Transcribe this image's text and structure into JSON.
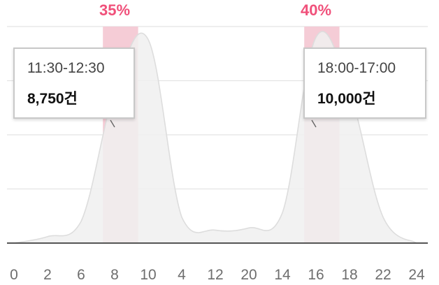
{
  "chart_data": {
    "type": "area",
    "x_tick_labels": [
      "0",
      "2",
      "6",
      "8",
      "10",
      "4",
      "12",
      "20",
      "14",
      "16",
      "18",
      "22",
      "24"
    ],
    "ylim": [
      0,
      100
    ],
    "grid": true,
    "series": [
      {
        "values": [
          0,
          3,
          10,
          70,
          94,
          12,
          6,
          7,
          14,
          95,
          70,
          12,
          0
        ]
      }
    ],
    "highlights": [
      {
        "from_index": 2.65,
        "to_index": 3.7,
        "label": "35%",
        "peak_index": 3.0
      },
      {
        "from_index": 8.65,
        "to_index": 9.7,
        "label": "40%",
        "peak_index": 9.0
      }
    ],
    "tooltips": [
      {
        "time": "11:30-12:30",
        "count": "8,750건",
        "anchor_index": 3.0
      },
      {
        "time": "18:00-17:00",
        "count": "10,000건",
        "anchor_index": 9.0
      }
    ],
    "colors": {
      "area_fill": "#f0f0f0",
      "area_stroke": "#dddddd",
      "highlight": "#f5ccd6",
      "peak_label": "#f0507a",
      "baseline": "#555555",
      "grid": "#e4e4e4"
    }
  }
}
